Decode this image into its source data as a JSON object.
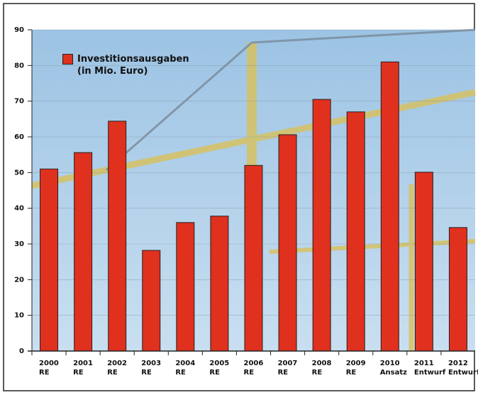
{
  "chart_data": {
    "type": "bar",
    "categories": [
      [
        "2000",
        "RE"
      ],
      [
        "2001",
        "RE"
      ],
      [
        "2002",
        "RE"
      ],
      [
        "2003",
        "RE"
      ],
      [
        "2004",
        "RE"
      ],
      [
        "2005",
        "RE"
      ],
      [
        "2006",
        "RE"
      ],
      [
        "2007",
        "RE"
      ],
      [
        "2008",
        "RE"
      ],
      [
        "2009",
        "RE"
      ],
      [
        "2010",
        "Ansatz"
      ],
      [
        "2011",
        "Entwurf"
      ],
      [
        "2012",
        "Entwurf"
      ]
    ],
    "series": [
      {
        "name": "Investitionsausgaben (in Mio. Euro)",
        "color": "#e0301e",
        "values": [
          51,
          55.6,
          64.4,
          28.2,
          36,
          37.8,
          52,
          60.6,
          70.5,
          67,
          81,
          50.1,
          34.6
        ]
      }
    ],
    "ylim": [
      0,
      90
    ],
    "yticks": [
      0,
      10,
      20,
      30,
      40,
      50,
      60,
      70,
      80,
      90
    ],
    "grid": true,
    "legend": "top-left"
  }
}
